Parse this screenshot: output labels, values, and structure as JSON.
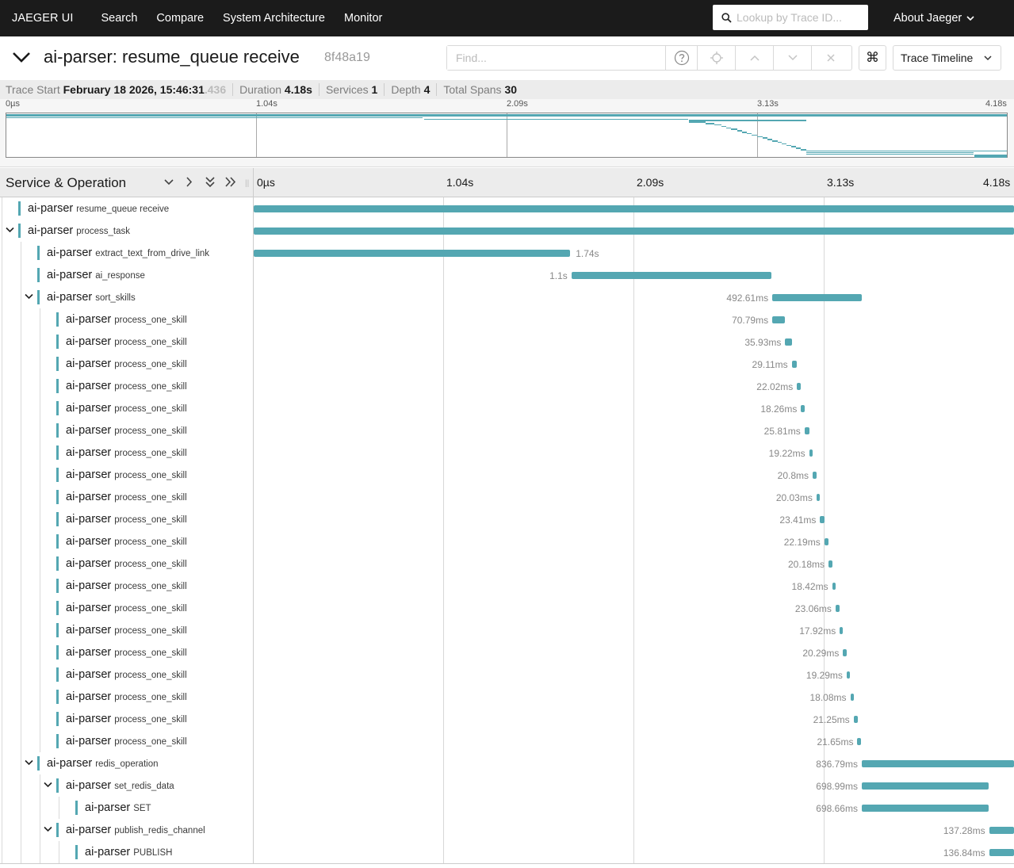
{
  "nav": {
    "brand": "JAEGER UI",
    "links": [
      "Search",
      "Compare",
      "System Architecture",
      "Monitor"
    ],
    "lookup_placeholder": "Lookup by Trace ID...",
    "about": "About Jaeger"
  },
  "trace": {
    "title": "ai-parser: resume_queue receive",
    "id": "8f48a19",
    "find_placeholder": "Find...",
    "view_mode": "Trace Timeline",
    "kbd_symbol": "⌘"
  },
  "summary": {
    "start_label": "Trace Start",
    "start_value": "February 18 2026, 15:46:31",
    "start_ms": ".436",
    "duration_label": "Duration",
    "duration_value": "4.18s",
    "services_label": "Services",
    "services_value": "1",
    "depth_label": "Depth",
    "depth_value": "4",
    "spans_label": "Total Spans",
    "spans_value": "30"
  },
  "minimap_ticks": [
    "0µs",
    "1.04s",
    "2.09s",
    "3.13s",
    "4.18s"
  ],
  "timeline": {
    "header_title": "Service & Operation",
    "ticks": [
      "0µs",
      "1.04s",
      "2.09s",
      "3.13s",
      "4.18s"
    ],
    "total_seconds": 4.18
  },
  "colors": {
    "span": "#54a7b2",
    "nav_bg": "#1b1b1b"
  },
  "spans": [
    {
      "service": "ai-parser",
      "operation": "resume_queue receive",
      "depth": 0,
      "start": 0,
      "duration": 4.18,
      "label": "",
      "expandable": false
    },
    {
      "service": "ai-parser",
      "operation": "process_task",
      "depth": 0,
      "start": 0,
      "duration": 4.18,
      "label": "",
      "expandable": true
    },
    {
      "service": "ai-parser",
      "operation": "extract_text_from_drive_link",
      "depth": 1,
      "start": 0,
      "duration": 1.74,
      "label": "1.74s",
      "expandable": false
    },
    {
      "service": "ai-parser",
      "operation": "ai_response",
      "depth": 1,
      "start": 1.747,
      "duration": 1.1,
      "label": "1.1s",
      "expandable": false
    },
    {
      "service": "ai-parser",
      "operation": "sort_skills",
      "depth": 1,
      "start": 2.851,
      "duration": 0.49261,
      "label": "492.61ms",
      "expandable": true
    },
    {
      "service": "ai-parser",
      "operation": "process_one_skill",
      "depth": 2,
      "start": 2.851,
      "duration": 0.07079,
      "label": "70.79ms",
      "expandable": false
    },
    {
      "service": "ai-parser",
      "operation": "process_one_skill",
      "depth": 2,
      "start": 2.922,
      "duration": 0.03593,
      "label": "35.93ms",
      "expandable": false
    },
    {
      "service": "ai-parser",
      "operation": "process_one_skill",
      "depth": 2,
      "start": 2.958,
      "duration": 0.02911,
      "label": "29.11ms",
      "expandable": false
    },
    {
      "service": "ai-parser",
      "operation": "process_one_skill",
      "depth": 2,
      "start": 2.987,
      "duration": 0.02202,
      "label": "22.02ms",
      "expandable": false
    },
    {
      "service": "ai-parser",
      "operation": "process_one_skill",
      "depth": 2,
      "start": 3.009,
      "duration": 0.01826,
      "label": "18.26ms",
      "expandable": false
    },
    {
      "service": "ai-parser",
      "operation": "process_one_skill",
      "depth": 2,
      "start": 3.028,
      "duration": 0.02581,
      "label": "25.81ms",
      "expandable": false
    },
    {
      "service": "ai-parser",
      "operation": "process_one_skill",
      "depth": 2,
      "start": 3.054,
      "duration": 0.01922,
      "label": "19.22ms",
      "expandable": false
    },
    {
      "service": "ai-parser",
      "operation": "process_one_skill",
      "depth": 2,
      "start": 3.073,
      "duration": 0.0208,
      "label": "20.8ms",
      "expandable": false
    },
    {
      "service": "ai-parser",
      "operation": "process_one_skill",
      "depth": 2,
      "start": 3.094,
      "duration": 0.02003,
      "label": "20.03ms",
      "expandable": false
    },
    {
      "service": "ai-parser",
      "operation": "process_one_skill",
      "depth": 2,
      "start": 3.114,
      "duration": 0.02341,
      "label": "23.41ms",
      "expandable": false
    },
    {
      "service": "ai-parser",
      "operation": "process_one_skill",
      "depth": 2,
      "start": 3.137,
      "duration": 0.02219,
      "label": "22.19ms",
      "expandable": false
    },
    {
      "service": "ai-parser",
      "operation": "process_one_skill",
      "depth": 2,
      "start": 3.16,
      "duration": 0.02018,
      "label": "20.18ms",
      "expandable": false
    },
    {
      "service": "ai-parser",
      "operation": "process_one_skill",
      "depth": 2,
      "start": 3.18,
      "duration": 0.01842,
      "label": "18.42ms",
      "expandable": false
    },
    {
      "service": "ai-parser",
      "operation": "process_one_skill",
      "depth": 2,
      "start": 3.199,
      "duration": 0.02306,
      "label": "23.06ms",
      "expandable": false
    },
    {
      "service": "ai-parser",
      "operation": "process_one_skill",
      "depth": 2,
      "start": 3.222,
      "duration": 0.01792,
      "label": "17.92ms",
      "expandable": false
    },
    {
      "service": "ai-parser",
      "operation": "process_one_skill",
      "depth": 2,
      "start": 3.24,
      "duration": 0.02029,
      "label": "20.29ms",
      "expandable": false
    },
    {
      "service": "ai-parser",
      "operation": "process_one_skill",
      "depth": 2,
      "start": 3.26,
      "duration": 0.01929,
      "label": "19.29ms",
      "expandable": false
    },
    {
      "service": "ai-parser",
      "operation": "process_one_skill",
      "depth": 2,
      "start": 3.28,
      "duration": 0.01808,
      "label": "18.08ms",
      "expandable": false
    },
    {
      "service": "ai-parser",
      "operation": "process_one_skill",
      "depth": 2,
      "start": 3.298,
      "duration": 0.02125,
      "label": "21.25ms",
      "expandable": false
    },
    {
      "service": "ai-parser",
      "operation": "process_one_skill",
      "depth": 2,
      "start": 3.319,
      "duration": 0.02165,
      "label": "21.65ms",
      "expandable": false
    },
    {
      "service": "ai-parser",
      "operation": "redis_operation",
      "depth": 1,
      "start": 3.343,
      "duration": 0.83679,
      "label": "836.79ms",
      "expandable": true
    },
    {
      "service": "ai-parser",
      "operation": "set_redis_data",
      "depth": 2,
      "start": 3.343,
      "duration": 0.69899,
      "label": "698.99ms",
      "expandable": true
    },
    {
      "service": "ai-parser",
      "operation": "SET",
      "depth": 3,
      "start": 3.343,
      "duration": 0.69866,
      "label": "698.66ms",
      "expandable": false
    },
    {
      "service": "ai-parser",
      "operation": "publish_redis_channel",
      "depth": 2,
      "start": 4.043,
      "duration": 0.13728,
      "label": "137.28ms",
      "expandable": true
    },
    {
      "service": "ai-parser",
      "operation": "PUBLISH",
      "depth": 3,
      "start": 4.043,
      "duration": 0.13684,
      "label": "136.84ms",
      "expandable": false
    }
  ]
}
